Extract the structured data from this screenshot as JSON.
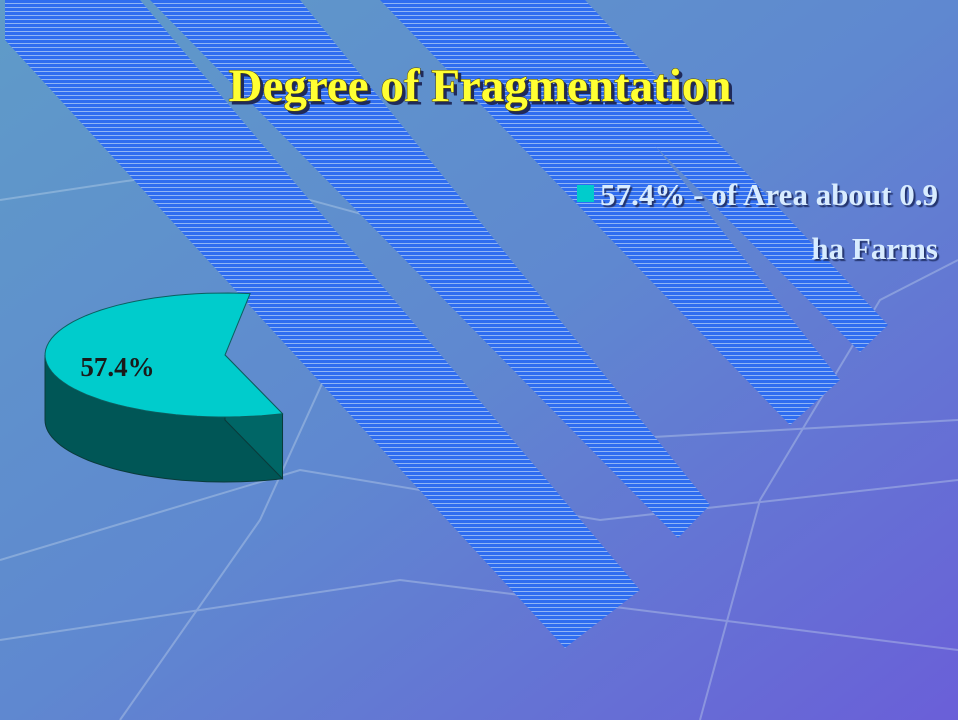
{
  "chart_data": {
    "type": "pie",
    "title": "Degree of Fragmentation",
    "categories": [
      "57.4% - of Area about 0.9 ha Farms"
    ],
    "values": [
      57.4
    ],
    "value_labels": [
      "57.4%"
    ],
    "colors": [
      "#00cccc"
    ],
    "legend": "top-right"
  }
}
